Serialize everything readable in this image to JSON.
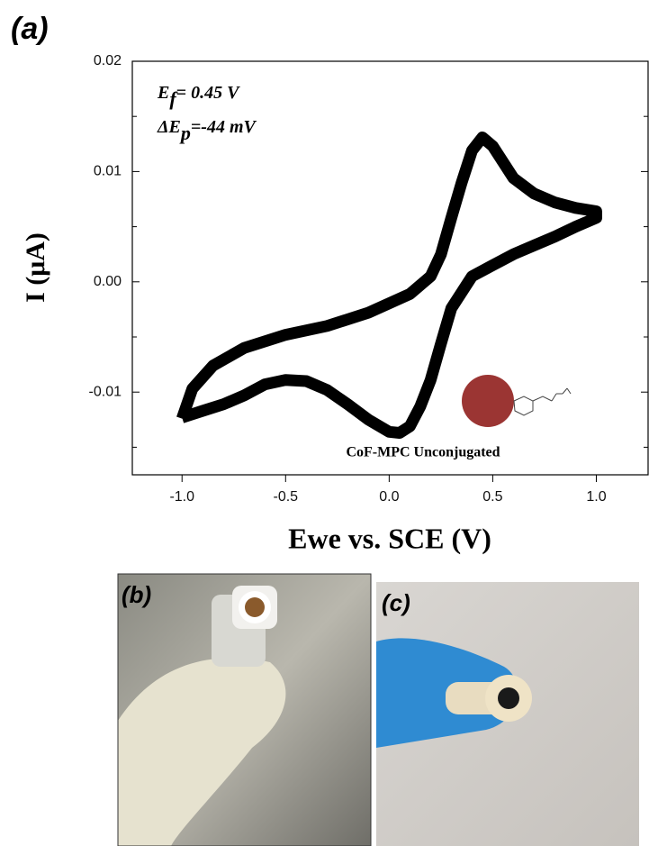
{
  "chart_data": {
    "type": "line",
    "panel_label": "(a)",
    "xlabel": "Ewe vs. SCE (V)",
    "ylabel": "I (μA)",
    "annotations": [
      {
        "main": "E",
        "sub": "f",
        "rest": "= 0.45 V"
      },
      {
        "main": "ΔE",
        "sub": "p",
        "rest": "=-44 mV"
      }
    ],
    "inset_label": "CoF-MPC Unconjugated",
    "xlim": [
      -1.24,
      1.25
    ],
    "ylim": [
      -0.0175,
      0.02
    ],
    "xticks": [
      {
        "value": -1,
        "label": "-1.0"
      },
      -0.5,
      {
        "value": 0,
        "label": "0.0"
      },
      0.5,
      {
        "value": 1,
        "label": "1.0"
      }
    ],
    "yticks": [
      0.02,
      0.01,
      {
        "value": 0,
        "label": "0.00"
      },
      -0.01
    ],
    "yminorticks": [
      0.015,
      0.005,
      -0.005,
      -0.015
    ],
    "x": [
      -1.0,
      -0.95,
      -0.85,
      -0.7,
      -0.5,
      -0.3,
      -0.1,
      0.1,
      0.2,
      0.25,
      0.3,
      0.35,
      0.4,
      0.45,
      0.5,
      0.6,
      0.7,
      0.8,
      0.9,
      1.0,
      1.0,
      0.9,
      0.8,
      0.7,
      0.6,
      0.5,
      0.4,
      0.3,
      0.25,
      0.2,
      0.15,
      0.1,
      0.05,
      0.0,
      -0.1,
      -0.2,
      -0.3,
      -0.4,
      -0.5,
      -0.6,
      -0.7,
      -0.8,
      -0.9,
      -1.0
    ],
    "series": [
      {
        "color": "#000000",
        "values": [
          -0.0124,
          -0.0097,
          -0.0076,
          -0.006,
          -0.0048,
          -0.004,
          -0.0028,
          -0.0011,
          0.0005,
          0.0025,
          0.0058,
          0.009,
          0.0119,
          0.0131,
          0.0123,
          0.0094,
          0.008,
          0.0072,
          0.0067,
          0.0064,
          0.0058,
          0.005,
          0.0041,
          0.0033,
          0.0025,
          0.0015,
          0.0005,
          -0.0024,
          -0.0056,
          -0.0089,
          -0.0113,
          -0.0131,
          -0.0137,
          -0.0136,
          -0.0125,
          -0.0111,
          -0.0098,
          -0.009,
          -0.0089,
          -0.0093,
          -0.0103,
          -0.0111,
          -0.0117,
          -0.0123
        ]
      }
    ]
  },
  "photos": [
    {
      "label": "(b)"
    },
    {
      "label": "(c)"
    }
  ]
}
